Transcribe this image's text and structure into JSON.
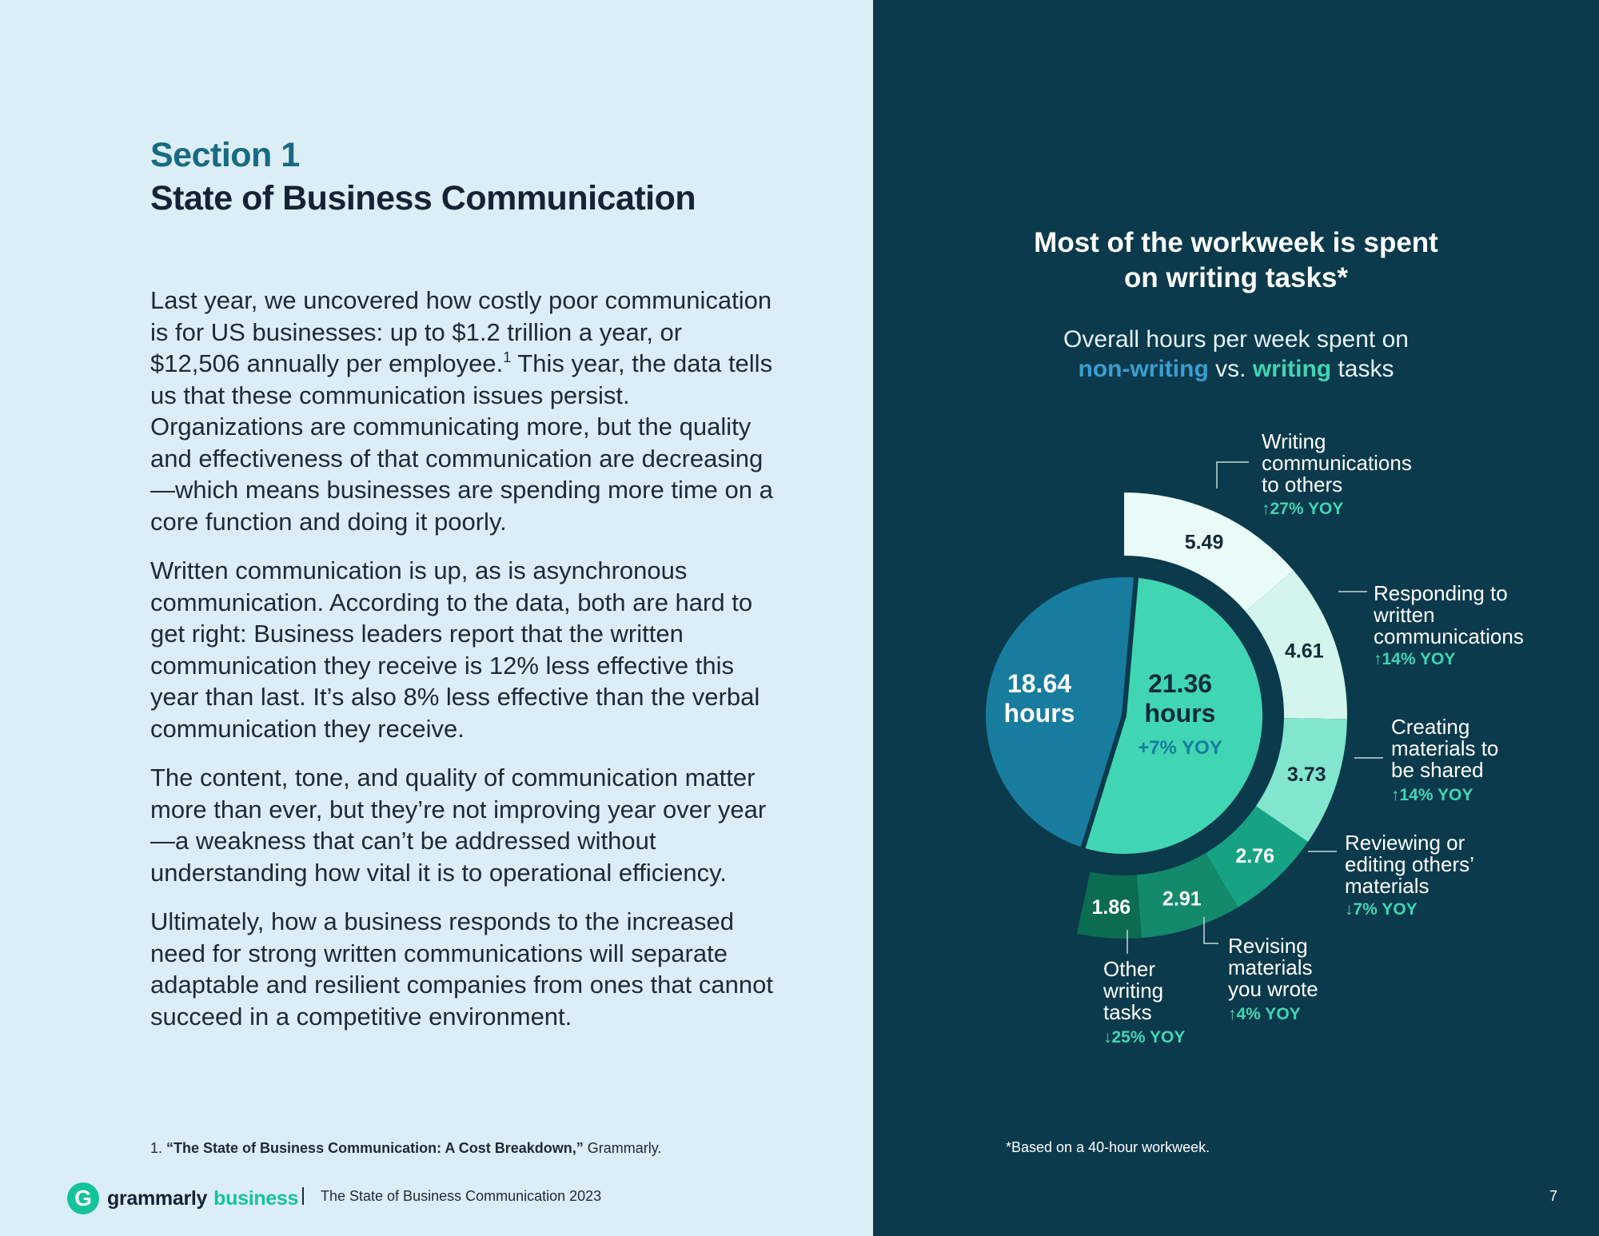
{
  "section": {
    "label": "Section 1",
    "title": "State of Business Communication"
  },
  "body": {
    "p1_before_sup": "Last year, we uncovered how costly poor communication is for US businesses: up to $1.2 trillion a year, or $12,506 annually per employee.",
    "p1_sup": "1",
    "p1_after_sup": " This year, the data tells us that these communication issues persist. Organizations are communicating more, but the quality and effectiveness of that communication are decreasing—which means businesses are spending more time on a core function and doing it poorly.",
    "p2": "Written communication is up, as is asynchronous communication. According to the data, both are hard to get right: Business leaders report that the written communication they receive is 12% less effective this year than last. It’s also 8% less effective than the verbal communication they receive.",
    "p3": "The content, tone, and quality of communication matter more than ever, but they’re not improving year over year—a weakness that can’t be addressed without understanding how vital it is to operational efficiency.",
    "p4": "Ultimately, how a business responds to the increased need for strong written communications will separate adaptable and resilient companies from ones that cannot succeed in a competitive environment."
  },
  "footnote": {
    "number": "1.",
    "title": "“The State of Business Communication: A Cost Breakdown,”",
    "source": " Grammarly."
  },
  "footer": {
    "logo_word": "grammarly",
    "logo_suffix": "business",
    "logo_letter": "G",
    "doc_title": "The State of Business Communication 2023",
    "page_number": "7"
  },
  "chart": {
    "title_line1": "Most of the workweek is spent",
    "title_line2": "on writing tasks*",
    "subtitle_line1": "Overall hours per week spent on",
    "subtitle_nonwriting": "non-writing",
    "subtitle_vs": " vs. ",
    "subtitle_writing": "writing",
    "subtitle_tasks": " tasks",
    "note": "*Based on a 40-hour workweek."
  },
  "chart_data": {
    "type": "pie",
    "inner": [
      {
        "name": "non-writing",
        "value": 18.64,
        "label_line1": "18.64",
        "label_line2": "hours",
        "color": "#177c9e"
      },
      {
        "name": "writing",
        "value": 21.36,
        "label_line1": "21.36",
        "label_line2": "hours",
        "change": "+7% YOY",
        "color": "#40d6b3"
      }
    ],
    "outer": [
      {
        "value": 5.49,
        "label": "5.49",
        "lines": [
          "Writing",
          "communications",
          "to others"
        ],
        "change": "27% YOY",
        "dir": "up",
        "color": "#eafcf8",
        "text_color": "#102a38"
      },
      {
        "value": 4.61,
        "label": "4.61",
        "lines": [
          "Responding to",
          "written",
          "communications"
        ],
        "change": "14% YOY",
        "dir": "up",
        "color": "#d3f5ed",
        "text_color": "#102a38"
      },
      {
        "value": 3.73,
        "label": "3.73",
        "lines": [
          "Creating",
          "materials to",
          "be shared"
        ],
        "change": "14% YOY",
        "dir": "up",
        "color": "#82e5cd",
        "text_color": "#102a38"
      },
      {
        "value": 2.76,
        "label": "2.76",
        "lines": [
          "Reviewing or",
          "editing others’",
          "materials"
        ],
        "change": "7% YOY",
        "dir": "down",
        "color": "#16a383",
        "text_color": "#ffffff"
      },
      {
        "value": 2.91,
        "label": "2.91",
        "lines": [
          "Revising",
          "materials",
          "you wrote"
        ],
        "change": "4% YOY",
        "dir": "up",
        "color": "#138a6b",
        "text_color": "#ffffff"
      },
      {
        "value": 1.86,
        "label": "1.86",
        "lines": [
          "Other",
          "writing",
          "tasks"
        ],
        "change": "25% YOY",
        "dir": "down",
        "color": "#0c6c51",
        "text_color": "#ffffff"
      }
    ],
    "colors": {
      "annotation_text": "#ffffff",
      "change_text": "#40d6b3",
      "leader_line": "#c8d6dc",
      "change_label_inner": "#177c9e"
    }
  }
}
